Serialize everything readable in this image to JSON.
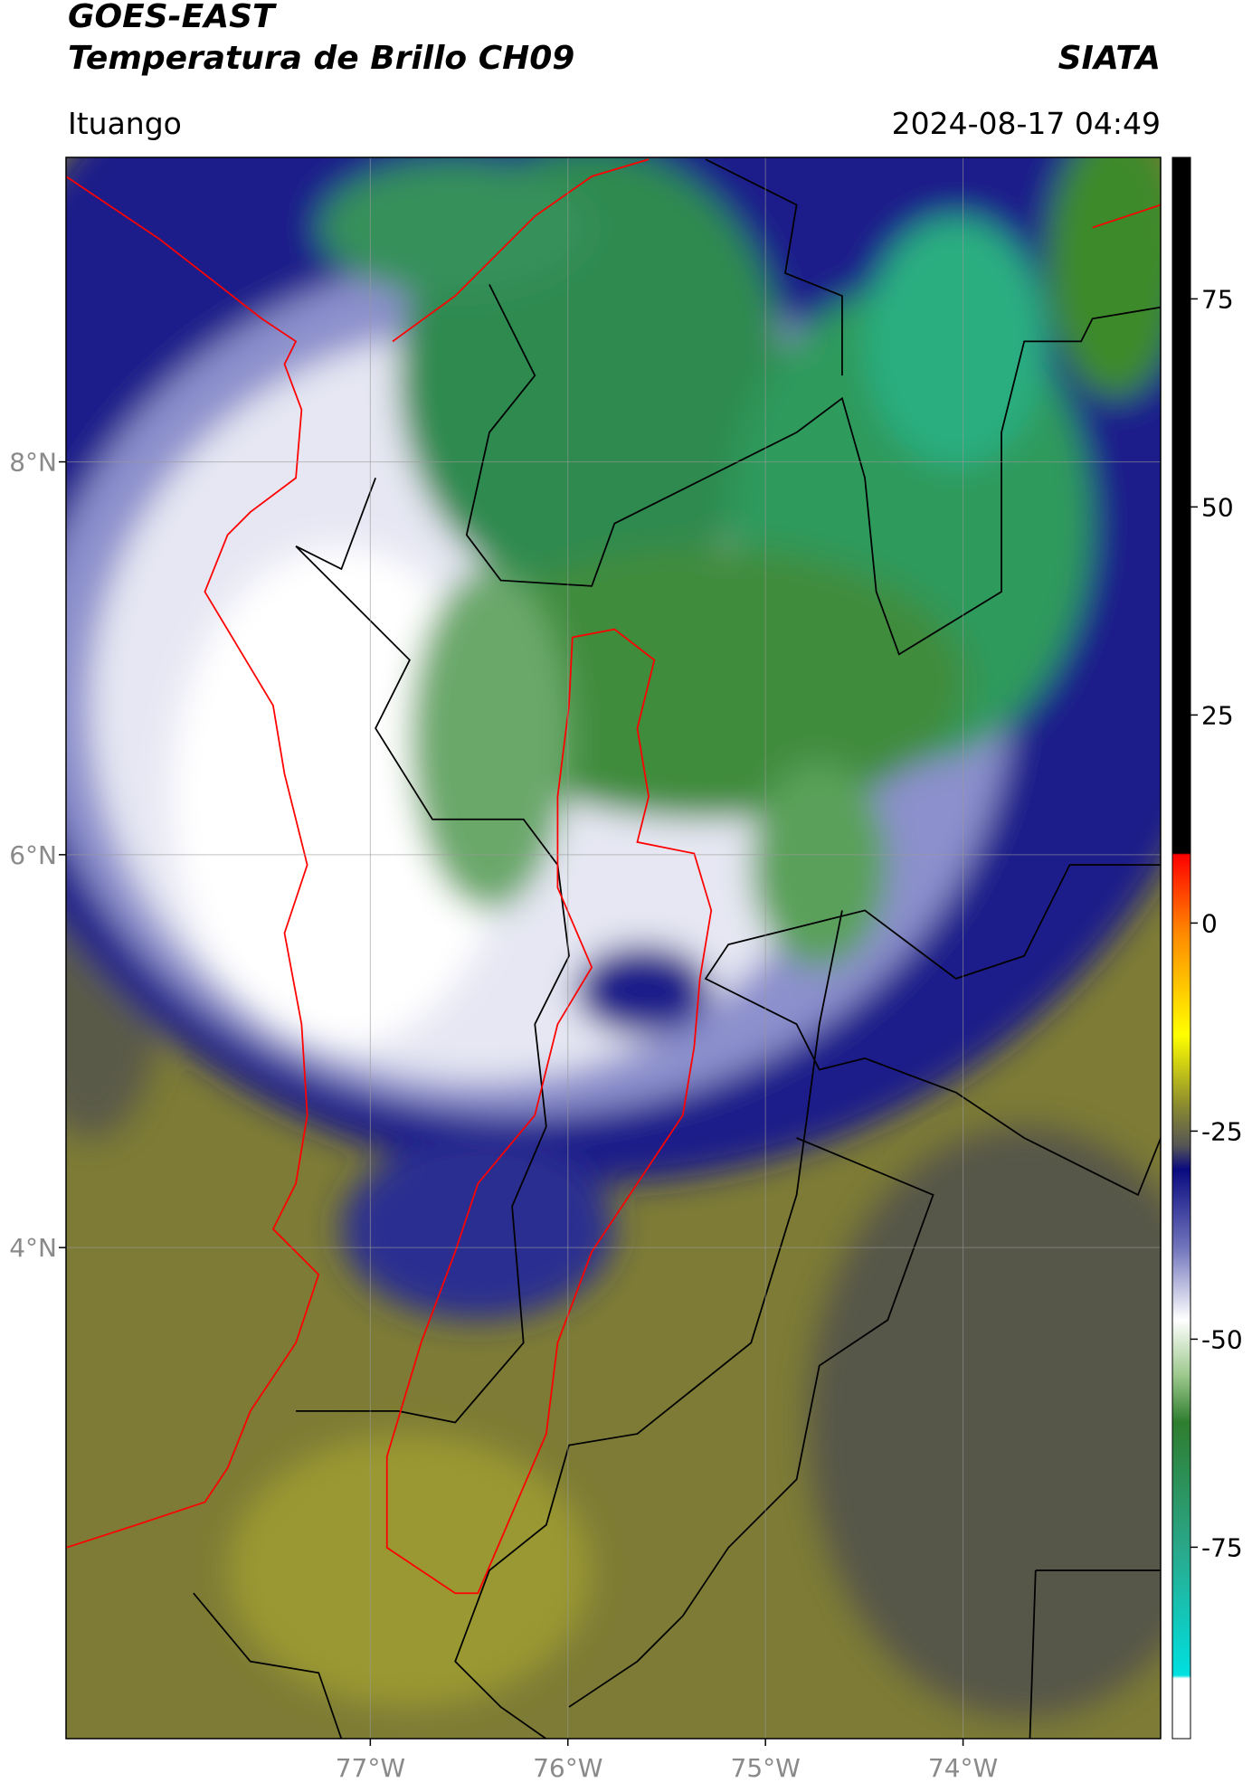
{
  "chart_data": {
    "type": "map",
    "title": "GOES-EAST",
    "subtitle": "Temperatura de Brillo CH09",
    "source": "SIATA",
    "location": "Ituango",
    "datetime": "2024-08-17 04:49",
    "xlim": [
      -78.54,
      -73.0
    ],
    "ylim": [
      1.5,
      9.55
    ],
    "xticks": [
      {
        "value": -77,
        "label": "77°W"
      },
      {
        "value": -76,
        "label": "76°W"
      },
      {
        "value": -75,
        "label": "75°W"
      },
      {
        "value": -74,
        "label": "74°W"
      }
    ],
    "yticks": [
      {
        "value": 4,
        "label": "4°N"
      },
      {
        "value": 6,
        "label": "6°N"
      },
      {
        "value": 8,
        "label": "8°N"
      }
    ],
    "grid": true,
    "colorbar": {
      "lim": [
        -98,
        92
      ],
      "ticks": [
        -75,
        -50,
        -25,
        0,
        25,
        50,
        75
      ]
    }
  }
}
